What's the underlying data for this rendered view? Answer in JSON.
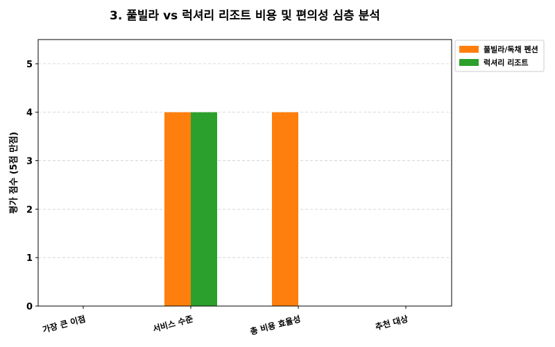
{
  "chart_data": {
    "type": "bar",
    "title": "3. 풀빌라 vs 럭셔리 리조트 비용 및 편의성 심층 분석",
    "ylabel": "평가 점수 (5점 만점)",
    "xlabel": "",
    "categories": [
      "가장 큰 이점",
      "서비스 수준",
      "총 비용 효율성",
      "추천 대상"
    ],
    "series": [
      {
        "name": "풀빌라/독채 펜션",
        "color": "#ff7f0e",
        "values": [
          0,
          4,
          4,
          0
        ]
      },
      {
        "name": "럭셔리 리조트",
        "color": "#2ca02c",
        "values": [
          0,
          4,
          0,
          0
        ]
      }
    ],
    "ylim": [
      0,
      5.5
    ],
    "yticks": [
      "0",
      "1",
      "2",
      "3",
      "4",
      "5"
    ],
    "grid": true,
    "legend_position": "top-right"
  }
}
